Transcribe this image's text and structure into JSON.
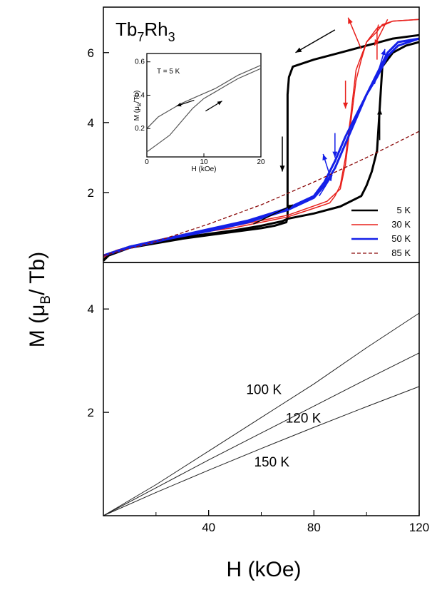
{
  "chart_data": [
    {
      "panel": "top",
      "type": "line",
      "title": "Tb7Rh3",
      "title_base": "Tb",
      "title_sub1": "7",
      "title_mid": "Rh",
      "title_sub2": "3",
      "xlim": [
        0,
        120
      ],
      "ylim": [
        0,
        7.3
      ],
      "yticks": [
        2,
        4,
        6
      ],
      "ytick_labels": [
        "2",
        "4",
        "6"
      ],
      "legend_position": "bottom-right",
      "series": [
        {
          "name": "5 K",
          "color": "#000000",
          "style": "solid",
          "width": 3,
          "segments": [
            {
              "x": [
                0,
                2,
                10,
                20,
                30,
                40,
                50,
                60,
                68,
                70,
                80,
                90,
                98,
                100,
                102,
                104,
                106,
                110,
                115,
                120
              ],
              "y": [
                0.05,
                0.25,
                0.45,
                0.6,
                0.72,
                0.82,
                0.92,
                1.05,
                1.18,
                1.25,
                1.4,
                1.6,
                1.9,
                2.2,
                2.6,
                3.2,
                5.6,
                6.0,
                6.2,
                6.3
              ]
            },
            {
              "x": [
                120,
                110,
                100,
                90,
                80,
                72,
                70.5,
                70,
                70,
                69.5,
                65,
                60,
                50,
                40,
                30,
                20,
                10,
                2,
                0
              ],
              "y": [
                6.5,
                6.4,
                6.2,
                6.0,
                5.8,
                5.6,
                5.3,
                4.8,
                1.3,
                1.15,
                1.05,
                0.98,
                0.88,
                0.78,
                0.68,
                0.55,
                0.42,
                0.2,
                0.05
              ]
            }
          ]
        },
        {
          "name": "30 K",
          "color": "#e8201c",
          "style": "solid",
          "width": 1.5,
          "segments": [
            {
              "x": [
                0,
                5,
                15,
                30,
                50,
                70,
                85,
                90,
                92,
                94,
                96,
                98,
                100,
                104,
                106,
                110,
                120
              ],
              "y": [
                0.15,
                0.35,
                0.55,
                0.8,
                1.05,
                1.35,
                1.75,
                2.1,
                2.8,
                4.0,
                5.2,
                5.8,
                6.3,
                6.6,
                6.8,
                6.9,
                6.95
              ]
            },
            {
              "x": [
                120,
                110,
                104,
                100,
                96,
                94,
                92,
                90,
                88,
                86,
                80,
                70,
                50,
                30,
                15,
                5,
                0
              ],
              "y": [
                6.95,
                6.9,
                6.7,
                6.3,
                5.5,
                4.2,
                3.0,
                2.2,
                1.9,
                1.7,
                1.55,
                1.3,
                1.0,
                0.78,
                0.55,
                0.35,
                0.15
              ]
            },
            {
              "x": [
                104,
                104,
                104.5
              ],
              "y": [
                5.8,
                6.6,
                6.8
              ]
            }
          ]
        },
        {
          "name": "50 K",
          "color": "#1420e8",
          "style": "solid",
          "width": 3,
          "segments": [
            {
              "x": [
                0,
                10,
                25,
                40,
                55,
                70,
                80,
                84,
                88,
                92,
                96,
                100,
                104,
                108,
                112,
                120
              ],
              "y": [
                0.2,
                0.45,
                0.7,
                0.95,
                1.2,
                1.55,
                1.9,
                2.3,
                2.9,
                3.6,
                4.2,
                4.8,
                5.3,
                5.9,
                6.2,
                6.4
              ]
            },
            {
              "x": [
                120,
                112,
                108,
                104,
                100,
                96,
                92,
                88,
                84,
                80,
                70,
                55,
                40,
                25,
                10,
                0
              ],
              "y": [
                6.4,
                6.3,
                6.0,
                5.4,
                4.8,
                4.1,
                3.4,
                2.7,
                2.2,
                1.85,
                1.5,
                1.15,
                0.9,
                0.68,
                0.42,
                0.2
              ]
            }
          ]
        },
        {
          "name": "85 K",
          "color": "#8b0a0a",
          "style": "dashed",
          "width": 1.3,
          "segments": [
            {
              "x": [
                0,
                20,
                40,
                60,
                80,
                100,
                120
              ],
              "y": [
                0.2,
                0.6,
                1.1,
                1.65,
                2.3,
                3.0,
                3.75
              ]
            }
          ]
        }
      ],
      "arrows": [
        {
          "color": "#000000",
          "x1": 88,
          "y1": 6.65,
          "x2": 73,
          "y2": 6.0
        },
        {
          "color": "#000000",
          "x1": 68,
          "y1": 3.6,
          "x2": 68,
          "y2": 2.6
        },
        {
          "color": "#000000",
          "x1": 105,
          "y1": 3.5,
          "x2": 105,
          "y2": 4.4
        },
        {
          "color": "#000000",
          "x1": 57,
          "y1": 1.1,
          "x2": 72,
          "y2": 1.65
        },
        {
          "color": "#e8201c",
          "x1": 98,
          "y1": 6.1,
          "x2": 93,
          "y2": 7.0
        },
        {
          "color": "#e8201c",
          "x1": 108,
          "y1": 6.95,
          "x2": 103,
          "y2": 6.2
        },
        {
          "color": "#e8201c",
          "x1": 92,
          "y1": 5.2,
          "x2": 92,
          "y2": 4.4
        },
        {
          "color": "#1420e8",
          "x1": 103,
          "y1": 5.1,
          "x2": 107,
          "y2": 6.1
        },
        {
          "color": "#1420e8",
          "x1": 86,
          "y1": 2.5,
          "x2": 83.5,
          "y2": 3.1
        },
        {
          "color": "#1420e8",
          "x1": 82,
          "y1": 1.9,
          "x2": 87,
          "y2": 2.5
        },
        {
          "color": "#1420e8",
          "x1": 88,
          "y1": 3.7,
          "x2": 88,
          "y2": 3.0
        }
      ]
    },
    {
      "panel": "inset",
      "type": "line",
      "annotation": "T = 5 K",
      "xlabel": "H (kOe)",
      "ylabel": "M (μB/Tb)",
      "ylabel_pre": "M (μ",
      "ylabel_sub": "B",
      "ylabel_post": "/Tb)",
      "xlim": [
        0,
        20
      ],
      "ylim": [
        0.03,
        0.65
      ],
      "xticks": [
        0,
        10,
        20
      ],
      "xtick_labels": [
        "0",
        "10",
        "20"
      ],
      "yticks": [
        0.2,
        0.4,
        0.6
      ],
      "ytick_labels": [
        "0.2",
        "0.4",
        "0.6"
      ],
      "series": [
        {
          "x": [
            0,
            2,
            4,
            6,
            8,
            10,
            12,
            14,
            16,
            18,
            20
          ],
          "y": [
            0.06,
            0.11,
            0.16,
            0.24,
            0.32,
            0.38,
            0.42,
            0.46,
            0.5,
            0.53,
            0.56
          ]
        },
        {
          "x": [
            0,
            2,
            4,
            6,
            8,
            10,
            12,
            14,
            16,
            18,
            20
          ],
          "y": [
            0.2,
            0.27,
            0.31,
            0.35,
            0.38,
            0.41,
            0.44,
            0.48,
            0.52,
            0.55,
            0.58
          ]
        }
      ],
      "arrows": [
        {
          "x1": 8.3,
          "y1": 0.37,
          "x2": 5.2,
          "y2": 0.335
        },
        {
          "x1": 10.3,
          "y1": 0.305,
          "x2": 13.2,
          "y2": 0.365
        }
      ]
    },
    {
      "panel": "bottom",
      "type": "line",
      "xlabel": "H (kOe)",
      "xlim": [
        0,
        120
      ],
      "ylim": [
        0,
        4.9
      ],
      "xticks": [
        40,
        80,
        120
      ],
      "xtick_labels": [
        "40",
        "80",
        "120"
      ],
      "yticks": [
        2,
        4
      ],
      "ytick_labels": [
        "2",
        "4"
      ],
      "series": [
        {
          "name": "100 K",
          "x": [
            0,
            20,
            40,
            60,
            80,
            100,
            120
          ],
          "y": [
            0,
            0.6,
            1.25,
            1.9,
            2.55,
            3.25,
            3.92
          ]
        },
        {
          "name": "120 K",
          "x": [
            0,
            20,
            40,
            60,
            80,
            100,
            120
          ],
          "y": [
            0,
            0.54,
            1.08,
            1.6,
            2.12,
            2.64,
            3.15
          ]
        },
        {
          "name": "150 K",
          "x": [
            0,
            20,
            40,
            60,
            80,
            100,
            120
          ],
          "y": [
            0,
            0.45,
            0.88,
            1.3,
            1.71,
            2.11,
            2.5
          ]
        }
      ],
      "labels": [
        {
          "text": "100 K",
          "x": 61,
          "y": 2.35
        },
        {
          "text": "120 K",
          "x": 76,
          "y": 1.8
        },
        {
          "text": "150 K",
          "x": 64,
          "y": 0.95
        }
      ]
    }
  ],
  "ylabel_shared": {
    "pre": "M (μ",
    "sub": "B",
    "post": "/ Tb)"
  },
  "xlabel_shared": "H (kOe)"
}
